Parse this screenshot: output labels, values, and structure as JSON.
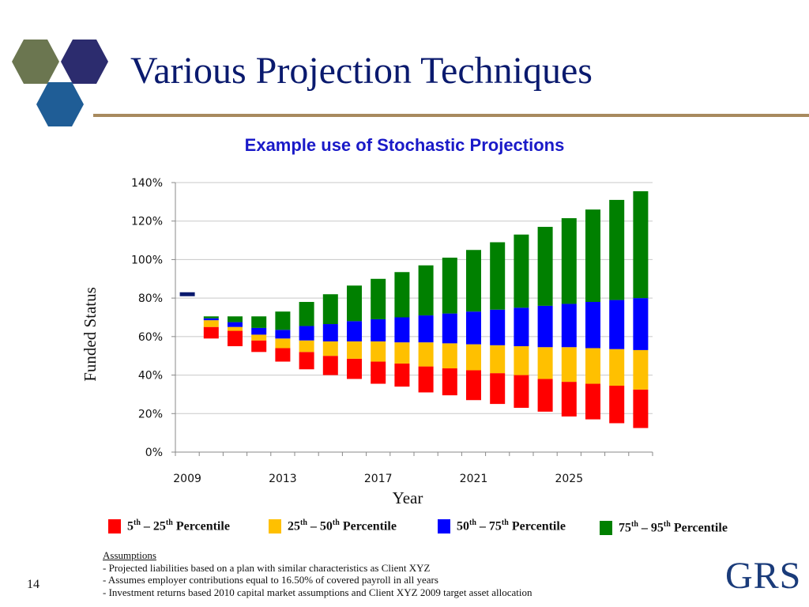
{
  "slide": {
    "title": "Various Projection Techniques",
    "number": "14",
    "brand": "GRS"
  },
  "colors": {
    "title": "#0a1a6e",
    "rule": "#a88a5e",
    "chart_title": "#1a1ac8",
    "p5_25": "#ff0000",
    "p25_50": "#ffc000",
    "p50_75": "#0000ff",
    "p75_95": "#008000",
    "current_marker": "#0a1a6e",
    "hex_olive": "#6b7650",
    "hex_navy": "#2c2c6e",
    "hex_blue": "#1f5d96"
  },
  "legend": [
    {
      "key": "p5_25",
      "pre": "5",
      "pre_sup": "th",
      "mid": " – 25",
      "mid_sup": "th",
      "post": " Percentile"
    },
    {
      "key": "p25_50",
      "pre": "25",
      "pre_sup": "th",
      "mid": " – 50",
      "mid_sup": "th",
      "post": " Percentile"
    },
    {
      "key": "p50_75",
      "pre": "50",
      "pre_sup": "th",
      "mid": " – 75",
      "mid_sup": "th",
      "post": " Percentile"
    },
    {
      "key": "p75_95",
      "pre": "75",
      "pre_sup": "th",
      "mid": " – 95",
      "mid_sup": "th",
      "post": " Percentile"
    }
  ],
  "assumptions": {
    "heading": "Assumptions",
    "lines": [
      "- Projected liabilities based on a plan with similar characteristics as Client XYZ",
      "- Assumes employer contributions equal to 16.50% of covered payroll in all years",
      "- Investment returns based 2010 capital market assumptions and Client XYZ 2009 target asset allocation"
    ]
  },
  "chart_data": {
    "type": "bar",
    "stacked": true,
    "title": "Example use of Stochastic Projections",
    "xlabel": "Year",
    "ylabel": "Funded Status",
    "ylim": [
      0,
      1.4
    ],
    "yticks": [
      "0%",
      "20%",
      "40%",
      "60%",
      "80%",
      "100%",
      "120%",
      "140%"
    ],
    "xtick_labels": [
      "2009",
      "2013",
      "2017",
      "2021",
      "2025"
    ],
    "categories": [
      2009,
      2010,
      2011,
      2012,
      2013,
      2014,
      2015,
      2016,
      2017,
      2018,
      2019,
      2020,
      2021,
      2022,
      2023,
      2024,
      2025,
      2026,
      2027,
      2028
    ],
    "current_marker": {
      "year": 2009,
      "value": 0.82
    },
    "p5": [
      null,
      0.59,
      0.55,
      0.52,
      0.47,
      0.43,
      0.4,
      0.38,
      0.355,
      0.34,
      0.31,
      0.295,
      0.27,
      0.25,
      0.23,
      0.21,
      0.185,
      0.17,
      0.15,
      0.125
    ],
    "p25": [
      null,
      0.65,
      0.63,
      0.58,
      0.54,
      0.52,
      0.5,
      0.485,
      0.47,
      0.46,
      0.445,
      0.435,
      0.425,
      0.41,
      0.4,
      0.38,
      0.365,
      0.355,
      0.345,
      0.325
    ],
    "p50": [
      null,
      0.685,
      0.65,
      0.61,
      0.59,
      0.58,
      0.575,
      0.575,
      0.575,
      0.57,
      0.57,
      0.565,
      0.56,
      0.555,
      0.55,
      0.545,
      0.545,
      0.54,
      0.535,
      0.53
    ],
    "p75": [
      null,
      0.695,
      0.675,
      0.645,
      0.635,
      0.655,
      0.665,
      0.68,
      0.69,
      0.7,
      0.71,
      0.72,
      0.73,
      0.74,
      0.75,
      0.76,
      0.77,
      0.78,
      0.79,
      0.8
    ],
    "p95": [
      null,
      0.705,
      0.705,
      0.705,
      0.73,
      0.78,
      0.82,
      0.865,
      0.9,
      0.935,
      0.97,
      1.01,
      1.05,
      1.09,
      1.13,
      1.17,
      1.215,
      1.26,
      1.31,
      1.355
    ],
    "series": [
      {
        "name": "5th – 25th Percentile",
        "color_key": "p5_25",
        "from": "p5",
        "to": "p25"
      },
      {
        "name": "25th – 50th Percentile",
        "color_key": "p25_50",
        "from": "p25",
        "to": "p50"
      },
      {
        "name": "50th – 75th Percentile",
        "color_key": "p50_75",
        "from": "p50",
        "to": "p75"
      },
      {
        "name": "75th – 95th Percentile",
        "color_key": "p75_95",
        "from": "p75",
        "to": "p95"
      }
    ]
  }
}
